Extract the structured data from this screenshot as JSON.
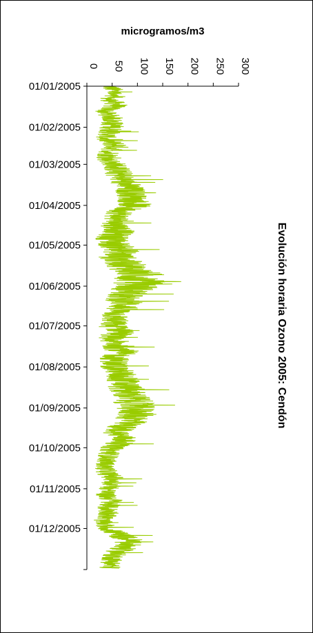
{
  "chart_data": {
    "type": "line",
    "orientation": "rotated 90° clockwise (time runs top-to-bottom, values increase rightward)",
    "title": "Evolución horaria Ozono 2005: Cendón",
    "ylabel": "microgramos/m3",
    "ylim": [
      0,
      300
    ],
    "yticks": [
      "0",
      "50",
      "100",
      "150",
      "200",
      "250",
      "300"
    ],
    "xlabel": "",
    "xlim": [
      "01/01/2005",
      "31/12/2005"
    ],
    "xticks": [
      "01/01/2005",
      "01/02/2005",
      "01/03/2005",
      "01/04/2005",
      "01/05/2005",
      "01/06/2005",
      "01/07/2005",
      "01/08/2005",
      "01/09/2005",
      "01/10/2005",
      "01/11/2005",
      "01/12/2005"
    ],
    "grid": false,
    "legend": "none",
    "series": [
      {
        "color": "#99cc00",
        "x": [
          "01/01/2005",
          "05/01/2005",
          "10/01/2005",
          "15/01/2005",
          "20/01/2005",
          "25/01/2005",
          "01/02/2005",
          "05/02/2005",
          "10/02/2005",
          "15/02/2005",
          "20/02/2005",
          "25/02/2005",
          "01/03/2005",
          "05/03/2005",
          "10/03/2005",
          "15/03/2005",
          "20/03/2005",
          "25/03/2005",
          "01/04/2005",
          "05/04/2005",
          "10/04/2005",
          "15/04/2005",
          "20/04/2005",
          "25/04/2005",
          "01/05/2005",
          "05/05/2005",
          "10/05/2005",
          "15/05/2005",
          "20/05/2005",
          "25/05/2005",
          "01/06/2005",
          "05/06/2005",
          "10/06/2005",
          "15/06/2005",
          "20/06/2005",
          "25/06/2005",
          "01/07/2005",
          "05/07/2005",
          "10/07/2005",
          "15/07/2005",
          "20/07/2005",
          "25/07/2005",
          "01/08/2005",
          "05/08/2005",
          "10/08/2005",
          "15/08/2005",
          "20/08/2005",
          "25/08/2005",
          "01/09/2005",
          "05/09/2005",
          "10/09/2005",
          "15/09/2005",
          "20/09/2005",
          "25/09/2005",
          "01/10/2005",
          "05/10/2005",
          "10/10/2005",
          "15/10/2005",
          "20/10/2005",
          "25/10/2005",
          "01/11/2005",
          "05/11/2005",
          "10/11/2005",
          "15/11/2005",
          "20/11/2005",
          "25/11/2005",
          "01/12/2005",
          "05/12/2005",
          "10/12/2005",
          "15/12/2005",
          "20/12/2005",
          "25/12/2005",
          "31/12/2005"
        ],
        "y": [
          45,
          55,
          40,
          60,
          35,
          50,
          50,
          45,
          35,
          60,
          45,
          40,
          55,
          60,
          65,
          75,
          85,
          90,
          95,
          70,
          60,
          55,
          65,
          50,
          55,
          70,
          60,
          75,
          90,
          110,
          100,
          85,
          70,
          80,
          60,
          55,
          50,
          75,
          45,
          60,
          70,
          55,
          55,
          65,
          70,
          75,
          80,
          90,
          95,
          100,
          90,
          70,
          60,
          75,
          50,
          45,
          40,
          35,
          40,
          55,
          45,
          35,
          50,
          40,
          45,
          30,
          40,
          60,
          85,
          75,
          55,
          50,
          45
        ],
        "spread": [
          20,
          22,
          18,
          25,
          20,
          22,
          25,
          22,
          20,
          28,
          24,
          22,
          25,
          28,
          30,
          30,
          32,
          30,
          35,
          30,
          28,
          30,
          32,
          34,
          34,
          36,
          38,
          40,
          45,
          55,
          50,
          42,
          36,
          38,
          32,
          30,
          30,
          36,
          28,
          32,
          34,
          30,
          30,
          32,
          34,
          36,
          38,
          40,
          40,
          40,
          38,
          32,
          28,
          30,
          24,
          22,
          20,
          20,
          22,
          24,
          22,
          20,
          24,
          22,
          22,
          18,
          20,
          26,
          30,
          28,
          24,
          22,
          22
        ]
      }
    ]
  }
}
